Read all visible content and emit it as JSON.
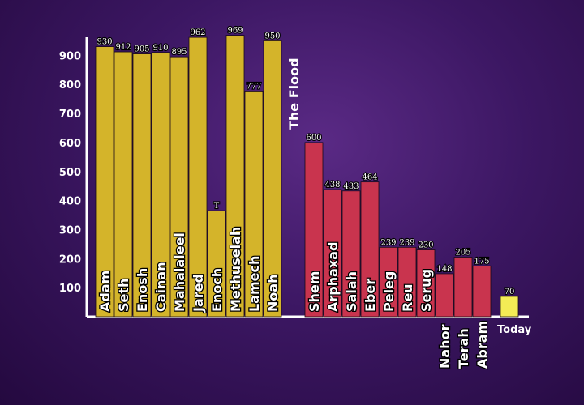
{
  "chart_data": {
    "type": "bar",
    "title": "",
    "xlabel": "",
    "ylabel": "",
    "ylim": [
      0,
      1000
    ],
    "yticks": [
      100,
      200,
      300,
      400,
      500,
      600,
      700,
      800,
      900
    ],
    "annotation": "The Flood",
    "grid": false,
    "colors": {
      "pre_flood": "#d4b42a",
      "post_flood": "#c9344e",
      "today": "#f4ec55"
    },
    "series": [
      {
        "group": "pre_flood",
        "categories": [
          "Adam",
          "Seth",
          "Enosh",
          "Cainan",
          "Mahalaleel",
          "Jared",
          "Enoch",
          "Methuselah",
          "Lamech",
          "Noah"
        ],
        "values": [
          930,
          912,
          905,
          910,
          895,
          962,
          365,
          969,
          777,
          950
        ],
        "labels": [
          "930",
          "912",
          "905",
          "910",
          "895",
          "962",
          "T",
          "969",
          "777",
          "950"
        ]
      },
      {
        "group": "post_flood",
        "categories": [
          "Shem",
          "Arphaxad",
          "Salah",
          "Eber",
          "Peleg",
          "Reu",
          "Serug",
          "Nahor",
          "Terah",
          "Abram"
        ],
        "values": [
          600,
          438,
          433,
          464,
          239,
          239,
          230,
          148,
          205,
          175
        ],
        "labels": [
          "600",
          "438",
          "433",
          "464",
          "239",
          "239",
          "230",
          "148",
          "205",
          "175"
        ]
      },
      {
        "group": "today",
        "categories": [
          "Today"
        ],
        "values": [
          70
        ],
        "labels": [
          "70"
        ]
      }
    ]
  }
}
